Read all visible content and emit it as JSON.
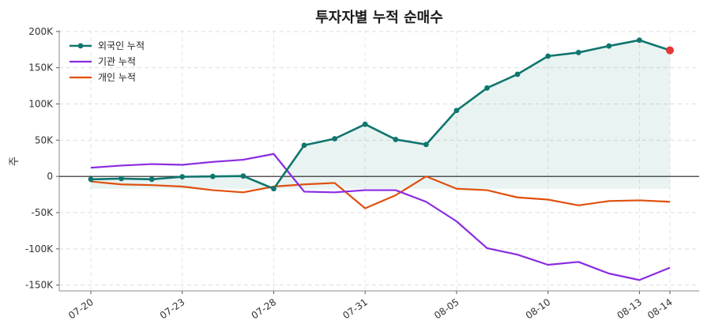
{
  "chart_data": {
    "type": "line",
    "title": "투자자별 누적 순매수",
    "ylabel": "주",
    "xlabel": "",
    "ylim": [
      -158000,
      202000
    ],
    "yticks": [
      200000,
      150000,
      100000,
      50000,
      0,
      -50000,
      -100000,
      -150000
    ],
    "ytick_labels": [
      "200K",
      "150K",
      "100K",
      "50K",
      "0",
      "-50K",
      "-100K",
      "-150K"
    ],
    "categories": [
      "07-20",
      "07-21",
      "07-22",
      "07-23",
      "07-24",
      "07-27",
      "07-28",
      "07-29",
      "07-30",
      "07-31",
      "08-03",
      "08-04",
      "08-05",
      "08-06",
      "08-07",
      "08-10",
      "08-11",
      "08-12",
      "08-13",
      "08-14"
    ],
    "xtick_labels": [
      "07-20",
      "07-23",
      "07-28",
      "07-31",
      "08-05",
      "08-10",
      "08-13",
      "08-14"
    ],
    "grid": true,
    "legend": "top-left",
    "series": [
      {
        "name": "외국인 누적",
        "color": "#0f766e",
        "markers": true,
        "fill": true,
        "values": [
          -4000,
          -3000,
          -4000,
          -500,
          0,
          500,
          -17000,
          43000,
          52000,
          72000,
          51000,
          44000,
          91000,
          122000,
          141000,
          166000,
          171000,
          180000,
          188000,
          174000
        ]
      },
      {
        "name": "기관 누적",
        "color": "#8a2be2",
        "markers": false,
        "fill": false,
        "values": [
          12000,
          15000,
          17000,
          16000,
          20000,
          23000,
          31000,
          -21000,
          -22000,
          -19000,
          -19000,
          -35000,
          -62000,
          -99000,
          -108000,
          -122000,
          -118000,
          -134000,
          -143000,
          -126000
        ]
      },
      {
        "name": "개인 누적",
        "color": "#e0500f",
        "markers": false,
        "fill": false,
        "values": [
          -7000,
          -11000,
          -12000,
          -14000,
          -19000,
          -22000,
          -14000,
          -11000,
          -9000,
          -44000,
          -26000,
          0,
          -17000,
          -19000,
          -29000,
          -32000,
          -40000,
          -34000,
          -33000,
          -35000
        ]
      }
    ],
    "highlight_last": {
      "series": 0,
      "color": "#e53935"
    }
  }
}
